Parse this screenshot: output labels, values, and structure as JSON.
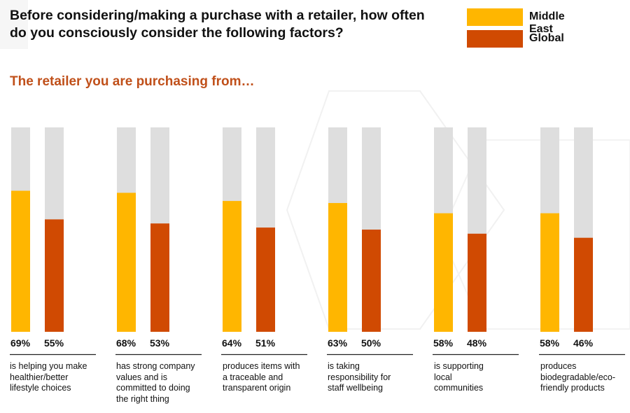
{
  "title": "Before considering/making a purchase with a retailer, how often do you consciously consider the following factors?",
  "subtitle": "The retailer you are purchasing from…",
  "colors": {
    "middle_east": "#ffb600",
    "global": "#d04a02",
    "track": "#dedede",
    "subtitle": "#c0501a"
  },
  "legend": [
    {
      "label": "Middle East",
      "color": "#ffb600"
    },
    {
      "label": "Global",
      "color": "#d04a02"
    }
  ],
  "chart_data": {
    "type": "bar",
    "title": "Before considering/making a purchase with a retailer, how often do you consciously consider the following factors?",
    "subtitle": "The retailer you are purchasing from…",
    "ylim": [
      0,
      100
    ],
    "grid": false,
    "legend_position": "top-right",
    "categories": [
      "is helping you make healthier/better lifestyle choices",
      "has strong company values and is committed to doing the right thing",
      "produces items with a traceable and transparent origin",
      "is taking responsibility for staff wellbeing",
      "is supporting local communities",
      "produces biodegradable/eco-friendly products"
    ],
    "series": [
      {
        "name": "Middle East",
        "values": [
          69,
          68,
          64,
          63,
          58,
          58
        ],
        "labels": [
          "69%",
          "68%",
          "64%",
          "63%",
          "58%",
          "58%"
        ]
      },
      {
        "name": "Global",
        "values": [
          55,
          53,
          51,
          50,
          48,
          46
        ],
        "labels": [
          "55%",
          "53%",
          "51%",
          "50%",
          "48%",
          "46%"
        ]
      }
    ]
  },
  "descriptions": [
    [
      "is helping you make",
      "healthier/better",
      "lifestyle choices"
    ],
    [
      "has strong company",
      "values and is",
      "committed to doing",
      "the right thing"
    ],
    [
      "produces items with",
      "a traceable and",
      "transparent origin"
    ],
    [
      "is taking",
      "responsibility for",
      "staff wellbeing"
    ],
    [
      "is supporting",
      "local",
      "communities"
    ],
    [
      "produces",
      "biodegradable/eco-",
      "friendly products"
    ]
  ]
}
